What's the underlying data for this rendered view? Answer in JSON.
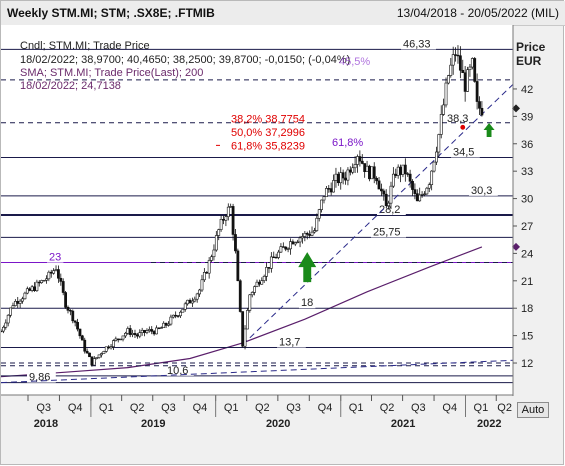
{
  "window": {
    "title": "Weekly STM.MI; STM; .SX8E; .FTMIB",
    "date_range": "13/04/2018 - 20/05/2022 (MIL)",
    "auto_button": "Auto"
  },
  "legend": {
    "line1": "Cndl; STM.MI; Trade Price",
    "line2": "18/02/2022; 38,9700; 40,4650; 38,2500; 39,8700; -0,0150; (-0,04%)",
    "line3": "SMA; STM.MI; Trade Price(Last); 200",
    "line4": "18/02/2022; 24,7138"
  },
  "colors": {
    "candles": "#111111",
    "sma": "#5a1f6b",
    "fib": "#e00000",
    "purple_level": "#7b16c8",
    "trend": "#2a2a8a",
    "arrow": "#1a8a1a",
    "marker_red": "#dd0000"
  },
  "chart_data": {
    "type": "candlestick",
    "title": "Weekly STM.MI; STM; .SX8E; .FTMIB",
    "ylabel": "Price EUR",
    "y_axis_label_lines": [
      "Price",
      "EUR"
    ],
    "ylim": [
      8.5,
      49
    ],
    "y_ticks": [
      12,
      15,
      18,
      21,
      24,
      27,
      30,
      33,
      36,
      39,
      42
    ],
    "x_quarters": [
      "Q3",
      "Q4",
      "Q1",
      "Q2",
      "Q3",
      "Q4",
      "Q1",
      "Q2",
      "Q3",
      "Q4",
      "Q1",
      "Q2",
      "Q3",
      "Q4",
      "Q1",
      "Q2"
    ],
    "x_years": [
      "2018",
      "2019",
      "2020",
      "2021",
      "2022"
    ],
    "price_path": [
      [
        "2018-04-13",
        15.5
      ],
      [
        "2018-05-18",
        18.5
      ],
      [
        "2018-06-22",
        19.5
      ],
      [
        "2018-07-27",
        20.5
      ],
      [
        "2018-08-31",
        21.5
      ],
      [
        "2018-09-21",
        22.5
      ],
      [
        "2018-10-19",
        18.5
      ],
      [
        "2018-11-16",
        16.5
      ],
      [
        "2018-12-14",
        13.5
      ],
      [
        "2019-01-04",
        12.0
      ],
      [
        "2019-02-08",
        13.5
      ],
      [
        "2019-03-15",
        14.5
      ],
      [
        "2019-04-19",
        15.5
      ],
      [
        "2019-05-17",
        15.0
      ],
      [
        "2019-06-14",
        15.5
      ],
      [
        "2019-07-12",
        15.5
      ],
      [
        "2019-08-09",
        16.2
      ],
      [
        "2019-09-13",
        17.5
      ],
      [
        "2019-10-18",
        18.8
      ],
      [
        "2019-11-15",
        20.0
      ],
      [
        "2019-12-13",
        23.0
      ],
      [
        "2020-01-10",
        26.5
      ],
      [
        "2020-01-31",
        28.5
      ],
      [
        "2020-02-14",
        29.0
      ],
      [
        "2020-02-28",
        24.0
      ],
      [
        "2020-03-20",
        14.0
      ],
      [
        "2020-04-10",
        19.5
      ],
      [
        "2020-05-15",
        21.5
      ],
      [
        "2020-06-19",
        23.5
      ],
      [
        "2020-07-17",
        24.5
      ],
      [
        "2020-08-14",
        25.5
      ],
      [
        "2020-09-18",
        26.0
      ],
      [
        "2020-10-16",
        26.5
      ],
      [
        "2020-11-13",
        30.5
      ],
      [
        "2020-12-18",
        32.0
      ],
      [
        "2021-01-15",
        32.5
      ],
      [
        "2021-02-19",
        35.0
      ],
      [
        "2021-03-19",
        33.0
      ],
      [
        "2021-04-16",
        32.5
      ],
      [
        "2021-05-14",
        29.0
      ],
      [
        "2021-06-11",
        33.0
      ],
      [
        "2021-07-09",
        33.0
      ],
      [
        "2021-08-13",
        29.5
      ],
      [
        "2021-09-17",
        32.0
      ],
      [
        "2021-10-15",
        37.0
      ],
      [
        "2021-11-12",
        43.5
      ],
      [
        "2021-12-03",
        46.0
      ],
      [
        "2021-12-31",
        42.5
      ],
      [
        "2022-01-21",
        44.5
      ],
      [
        "2022-02-04",
        40.0
      ],
      [
        "2022-02-18",
        39.87
      ]
    ],
    "sma_200": [
      [
        "2018-04-13",
        10.5
      ],
      [
        "2018-10-19",
        11.0
      ],
      [
        "2019-04-19",
        11.5
      ],
      [
        "2019-10-18",
        12.5
      ],
      [
        "2020-03-20",
        14.2
      ],
      [
        "2020-09-18",
        16.8
      ],
      [
        "2021-03-19",
        19.8
      ],
      [
        "2021-09-17",
        22.5
      ],
      [
        "2022-02-18",
        24.7138
      ]
    ],
    "horizontal_levels": [
      {
        "label": "46,33",
        "value": 46.33
      },
      {
        "label": "34,5",
        "value": 34.5
      },
      {
        "label": "30,3",
        "value": 30.3
      },
      {
        "label": "28,2",
        "value": 28.2
      },
      {
        "label": "25,75",
        "value": 25.75
      },
      {
        "label": "23",
        "value": 23.0
      },
      {
        "label": "18",
        "value": 18.0
      },
      {
        "label": "13,7",
        "value": 13.7
      },
      {
        "label": "10,6",
        "value": 10.6
      },
      {
        "label": "9,86",
        "value": 9.86
      }
    ],
    "dashed_levels": [
      43.0,
      38.3,
      23.0,
      12.0,
      11.7
    ],
    "fibonacci": [
      {
        "label": "38,2% 38,7754",
        "value": 38.7754
      },
      {
        "label": "50,0% 37,2996",
        "value": 37.2996
      },
      {
        "label": "61,8% 35,8239",
        "value": 35.8239
      }
    ],
    "annotations": {
      "fib_label": "61,8%",
      "level_38_3": "38,3",
      "level_45_pct": "45,5%"
    },
    "trendlines": [
      {
        "from": [
          "2020-03-20",
          14.0
        ],
        "to": [
          "2022-05-20",
          42.5
        ]
      },
      {
        "from": [
          "2018-04-13",
          9.86
        ],
        "to": [
          "2022-05-20",
          12.3
        ]
      }
    ]
  }
}
